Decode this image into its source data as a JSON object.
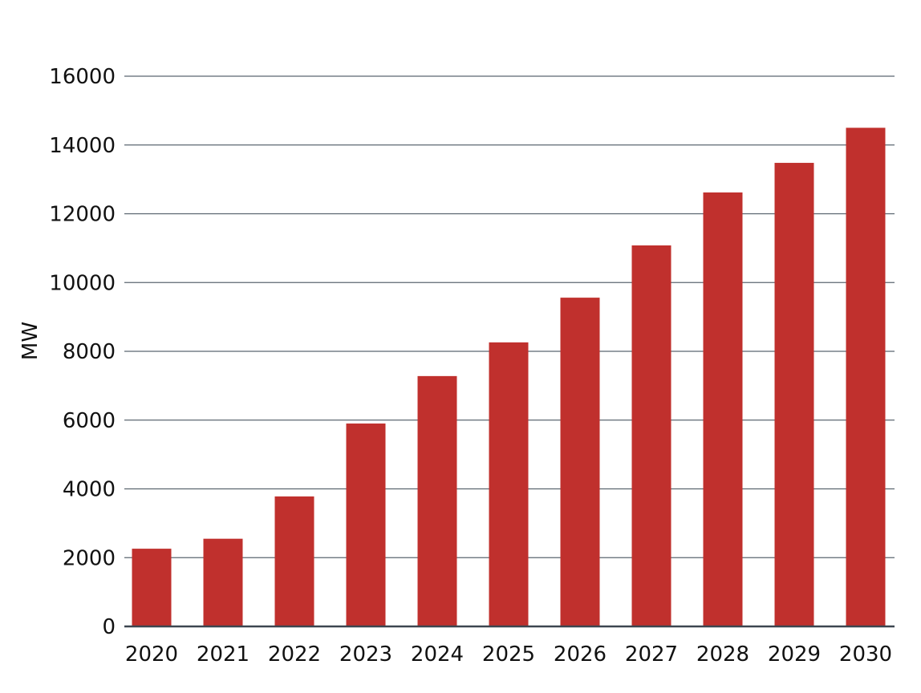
{
  "colors": {
    "bar": "#c0302d",
    "grid": "#5b6670",
    "axis": "#3c4650",
    "text": "#111111"
  },
  "chart_data": {
    "type": "bar",
    "title": "",
    "xlabel": "",
    "ylabel": "MW",
    "categories": [
      "2020",
      "2021",
      "2022",
      "2023",
      "2024",
      "2025",
      "2026",
      "2027",
      "2028",
      "2029",
      "2030"
    ],
    "values": [
      2260,
      2550,
      3780,
      5900,
      7280,
      8260,
      9560,
      11080,
      12620,
      13480,
      14500
    ],
    "ylim": [
      0,
      16000
    ],
    "yticks": [
      "0",
      "2000",
      "4000",
      "6000",
      "8000",
      "10000",
      "12000",
      "14000",
      "16000"
    ],
    "grid": true,
    "legend": "none"
  }
}
